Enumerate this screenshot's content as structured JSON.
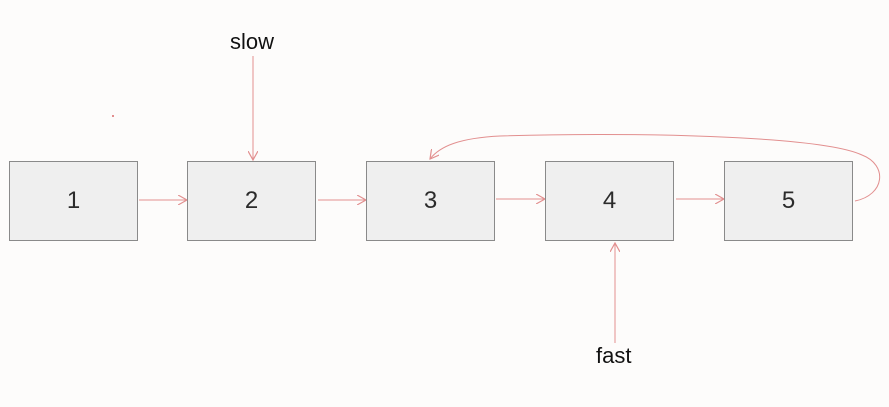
{
  "nodes": [
    {
      "id": "n1",
      "label": "1"
    },
    {
      "id": "n2",
      "label": "2"
    },
    {
      "id": "n3",
      "label": "3"
    },
    {
      "id": "n4",
      "label": "4"
    },
    {
      "id": "n5",
      "label": "5"
    }
  ],
  "pointers": {
    "slow": {
      "label": "slow",
      "target": "2"
    },
    "fast": {
      "label": "fast",
      "target": "4"
    }
  },
  "edges": [
    {
      "from": "1",
      "to": "2"
    },
    {
      "from": "2",
      "to": "3"
    },
    {
      "from": "3",
      "to": "4"
    },
    {
      "from": "4",
      "to": "5"
    },
    {
      "from": "5",
      "to": "3",
      "kind": "cycle"
    }
  ],
  "colors": {
    "edge": "#e28f8f",
    "node_fill": "#efefef",
    "node_border": "#8a8a8a",
    "text": "#2b2b2b"
  }
}
